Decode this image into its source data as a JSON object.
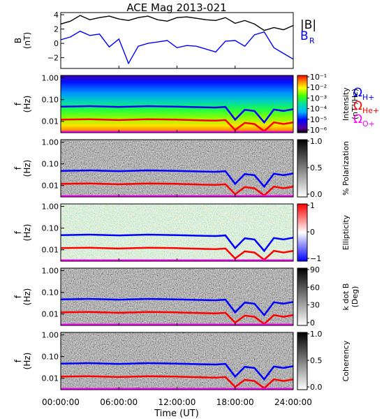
{
  "title": "ACE Mag 2013-021",
  "legend": {
    "b_total": "|B|",
    "b_r": "B",
    "b_r_sub": "R",
    "h_plus": "Ω",
    "h_plus_sub": "H+",
    "he_plus": "Ω",
    "he_plus_sub": "He+",
    "o_plus": "Ω",
    "o_plus_sub": "O+"
  },
  "colors": {
    "b_total": "#000000",
    "b_r": "#0000ff",
    "h_plus": "#0000ff",
    "he_plus": "#ff0000",
    "o_plus": "#ff00ff",
    "box": "#000000"
  },
  "x_axis": {
    "label": "Time (UT)",
    "ticks": [
      "00:00:00",
      "06:00:00",
      "12:00:00",
      "18:00:00",
      "24:00:00"
    ]
  },
  "chart_data": [
    {
      "type": "line",
      "ylabel": "B",
      "yunit": "(nT)",
      "yticks": [
        "4",
        "2",
        "0",
        "−2"
      ],
      "ylim": [
        -3.5,
        4.3
      ],
      "x_range_hours": [
        0,
        24
      ],
      "series": [
        {
          "name": "|B|",
          "x": [
            0,
            1,
            2,
            3,
            4,
            5,
            6,
            7,
            8,
            9,
            10,
            11,
            12,
            13,
            14,
            15,
            16,
            17,
            18,
            19,
            20,
            21,
            22,
            23,
            24
          ],
          "values": [
            2.7,
            3.1,
            3.9,
            3.3,
            3.6,
            3.8,
            3.4,
            3.2,
            3.6,
            3.8,
            3.3,
            3.1,
            3.6,
            3.7,
            3.5,
            3.3,
            3.2,
            3.6,
            2.8,
            3.2,
            2.7,
            1.8,
            2.2,
            1.9,
            2.5
          ]
        },
        {
          "name": "B_R",
          "x": [
            0,
            1,
            2,
            3,
            4,
            5,
            6,
            7,
            8,
            9,
            10,
            11,
            12,
            13,
            14,
            15,
            16,
            17,
            18,
            19,
            20,
            21,
            22,
            23,
            24
          ],
          "values": [
            0.5,
            0.9,
            1.7,
            1.1,
            1.3,
            -0.5,
            0.6,
            -2.8,
            -0.4,
            0.0,
            0.2,
            0.4,
            -0.6,
            -0.3,
            -0.4,
            -0.8,
            -1.2,
            0.3,
            0.4,
            -0.4,
            1.2,
            1.6,
            -0.6,
            -1.4,
            -2.2
          ]
        }
      ]
    },
    {
      "type": "heatmap",
      "ylabel": "f",
      "yunit": "(Hz)",
      "yticks": [
        "1.00",
        "0.10",
        "0.01"
      ],
      "ylog": true,
      "ylim": [
        0.003,
        1.3
      ],
      "colorbar": {
        "label": "Intensity",
        "unit": "(nT²/Hz)",
        "ticks": [
          "10⁻¹",
          "10⁻²",
          "10⁻³",
          "10⁻⁴",
          "10⁻⁵",
          "10⁻⁶"
        ],
        "palette": "rainbow"
      },
      "series": [
        {
          "name": "Ω_H+",
          "x": [
            0,
            3,
            6,
            9,
            12,
            15,
            16,
            17,
            18,
            19,
            20,
            21,
            22,
            23,
            24
          ],
          "values": [
            0.047,
            0.05,
            0.046,
            0.05,
            0.047,
            0.044,
            0.043,
            0.046,
            0.012,
            0.034,
            0.03,
            0.009,
            0.035,
            0.03,
            0.036
          ]
        },
        {
          "name": "Ω_He+",
          "x": [
            0,
            3,
            6,
            9,
            12,
            15,
            16,
            17,
            18,
            19,
            20,
            21,
            22,
            23,
            24
          ],
          "values": [
            0.012,
            0.0125,
            0.0115,
            0.0125,
            0.012,
            0.011,
            0.0107,
            0.0115,
            0.004,
            0.0085,
            0.0075,
            0.0035,
            0.009,
            0.0075,
            0.009
          ]
        },
        {
          "name": "Ω_O+",
          "x": [
            0,
            24
          ],
          "values": [
            0.0033,
            0.0033
          ]
        }
      ]
    },
    {
      "type": "heatmap",
      "ylabel": "f",
      "yunit": "(Hz)",
      "yticks": [
        "1.00",
        "0.10",
        "0.01"
      ],
      "ylog": true,
      "ylim": [
        0.003,
        1.3
      ],
      "colorbar": {
        "label": "% Polarization",
        "ticks": [
          "1.0",
          "0.5",
          "0.0"
        ],
        "palette": "gray"
      }
    },
    {
      "type": "heatmap",
      "ylabel": "f",
      "yunit": "(Hz)",
      "yticks": [
        "1.00",
        "0.10",
        "0.01"
      ],
      "ylog": true,
      "ylim": [
        0.003,
        1.3
      ],
      "colorbar": {
        "label": "Ellipticity",
        "ticks": [
          "1",
          "0",
          "−1"
        ],
        "palette": "bwr"
      }
    },
    {
      "type": "heatmap",
      "ylabel": "f",
      "yunit": "(Hz)",
      "yticks": [
        "1.00",
        "0.10",
        "0.01"
      ],
      "ylog": true,
      "ylim": [
        0.003,
        1.3
      ],
      "colorbar": {
        "label": "k dot B",
        "unit": "(Deg)",
        "ticks": [
          "90",
          "60",
          "30",
          "0"
        ],
        "palette": "gray"
      }
    },
    {
      "type": "heatmap",
      "ylabel": "f",
      "yunit": "(Hz)",
      "yticks": [
        "1.00",
        "0.10",
        "0.01"
      ],
      "ylog": true,
      "ylim": [
        0.003,
        1.3
      ],
      "colorbar": {
        "label": "Coherency",
        "ticks": [
          "1.0",
          "0.5",
          "0.0"
        ],
        "palette": "gray"
      }
    }
  ]
}
